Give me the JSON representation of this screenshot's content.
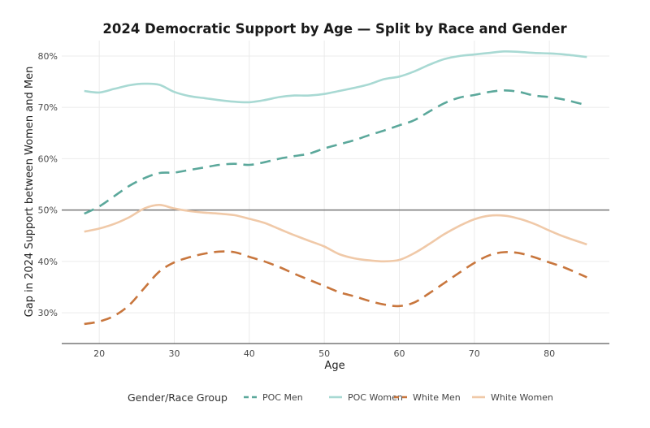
{
  "chart_data": {
    "type": "line",
    "title": "2024 Democratic Support by Age — Split by Race and Gender",
    "xlabel": "Age",
    "ylabel": "Gap in 2024 Support between Women and Men",
    "xlim": [
      15,
      88
    ],
    "ylim": [
      24,
      83
    ],
    "x_ticks": [
      20,
      30,
      40,
      50,
      60,
      70,
      80
    ],
    "x_tick_labels": [
      "20",
      "30",
      "40",
      "50",
      "60",
      "70",
      "80"
    ],
    "y_ticks": [
      30,
      40,
      50,
      60,
      70,
      80
    ],
    "y_tick_labels": [
      "30%",
      "40%",
      "50%",
      "60%",
      "70%",
      "80%"
    ],
    "reference_line": 50,
    "grid": true,
    "legend": {
      "title": "Gender/Race Group",
      "placement": "bottom"
    },
    "series": [
      {
        "name": "POC Men",
        "color": "#5ba89b",
        "dashed": true,
        "x": [
          18,
          20,
          22,
          24,
          26,
          28,
          30,
          32,
          34,
          36,
          38,
          40,
          42,
          44,
          46,
          48,
          50,
          52,
          54,
          56,
          58,
          60,
          62,
          64,
          66,
          68,
          70,
          72,
          74,
          76,
          78,
          80,
          82,
          85
        ],
        "y": [
          49.3,
          50.7,
          52.7,
          54.7,
          56.2,
          57.2,
          57.3,
          57.8,
          58.3,
          58.8,
          59.0,
          58.8,
          59.3,
          60.0,
          60.5,
          61.0,
          62.0,
          62.8,
          63.6,
          64.6,
          65.5,
          66.5,
          67.5,
          69.2,
          70.8,
          71.9,
          72.4,
          73.0,
          73.3,
          73.0,
          72.3,
          72.0,
          71.5,
          70.4
        ]
      },
      {
        "name": "POC Women",
        "color": "#a8d9d3",
        "dashed": false,
        "x": [
          18,
          20,
          22,
          24,
          26,
          28,
          30,
          32,
          34,
          36,
          38,
          40,
          42,
          44,
          46,
          48,
          50,
          52,
          54,
          56,
          58,
          60,
          62,
          64,
          66,
          68,
          70,
          72,
          74,
          76,
          78,
          80,
          82,
          85
        ],
        "y": [
          73.2,
          72.9,
          73.6,
          74.3,
          74.6,
          74.4,
          73.0,
          72.2,
          71.8,
          71.4,
          71.1,
          71.0,
          71.4,
          72.0,
          72.3,
          72.3,
          72.6,
          73.2,
          73.8,
          74.5,
          75.5,
          76.0,
          77.0,
          78.3,
          79.4,
          80.0,
          80.3,
          80.6,
          80.9,
          80.8,
          80.6,
          80.5,
          80.3,
          79.8
        ]
      },
      {
        "name": "White Men",
        "color": "#c8763d",
        "dashed": true,
        "x": [
          18,
          20,
          22,
          24,
          26,
          28,
          30,
          32,
          34,
          36,
          38,
          40,
          42,
          44,
          46,
          48,
          50,
          52,
          54,
          56,
          58,
          60,
          62,
          64,
          66,
          68,
          70,
          72,
          74,
          76,
          78,
          80,
          82,
          85
        ],
        "y": [
          27.8,
          28.3,
          29.4,
          31.5,
          34.8,
          38.0,
          39.8,
          40.8,
          41.5,
          41.9,
          41.8,
          40.9,
          40.0,
          38.9,
          37.6,
          36.4,
          35.2,
          34.0,
          33.2,
          32.3,
          31.6,
          31.3,
          32.0,
          33.8,
          35.8,
          37.8,
          39.7,
          41.2,
          41.8,
          41.6,
          40.8,
          39.8,
          38.8,
          36.9
        ]
      },
      {
        "name": "White Women",
        "color": "#f0c9a8",
        "dashed": false,
        "x": [
          18,
          20,
          22,
          24,
          26,
          28,
          30,
          32,
          34,
          36,
          38,
          40,
          42,
          44,
          46,
          48,
          50,
          52,
          54,
          56,
          58,
          60,
          62,
          64,
          66,
          68,
          70,
          72,
          74,
          76,
          78,
          80,
          82,
          85
        ],
        "y": [
          45.8,
          46.4,
          47.3,
          48.6,
          50.3,
          51.0,
          50.3,
          49.8,
          49.5,
          49.3,
          49.0,
          48.3,
          47.5,
          46.3,
          45.1,
          44.0,
          42.9,
          41.4,
          40.6,
          40.2,
          40.0,
          40.3,
          41.6,
          43.4,
          45.3,
          46.9,
          48.2,
          48.9,
          48.9,
          48.3,
          47.3,
          46.0,
          44.8,
          43.3
        ]
      }
    ]
  }
}
